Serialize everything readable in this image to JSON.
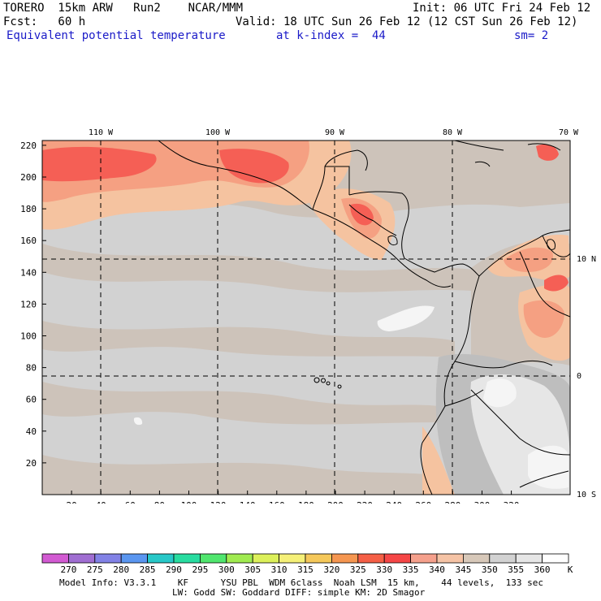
{
  "header": {
    "model": "TORERO  15km ARW   Run2    NCAR/MMM",
    "init": "Init: 06 UTC Fri 24 Feb 12",
    "fcst": "Fcst:   60 h",
    "valid": "Valid: 18 UTC Sun 26 Feb 12 (12 CST Sun 26 Feb 12)",
    "field": "Equivalent potential temperature",
    "kindex": "at k-index =  44",
    "smooth": "sm= 2"
  },
  "map": {
    "top_lon_labels": [
      "110 W",
      "100 W",
      "90 W",
      "80 W",
      "70 W"
    ],
    "right_lat_labels": [
      "10 N",
      "0",
      "10 S"
    ],
    "x_ticks": [
      "20",
      "40",
      "60",
      "80",
      "100",
      "120",
      "140",
      "160",
      "180",
      "200",
      "220",
      "240",
      "260",
      "280",
      "300",
      "320"
    ],
    "y_ticks": [
      "20",
      "40",
      "60",
      "80",
      "100",
      "120",
      "140",
      "160",
      "180",
      "200",
      "220"
    ],
    "colors": {
      "ocean_base": "#d2d2d2",
      "warm_tan": "#cdc3ba",
      "warm_peach": "#f5c3a0",
      "warm_salmon": "#f5a082",
      "warm_red": "#f55f55",
      "warm_deep": "#e83a3a",
      "cool_gray": "#bebebe",
      "cool_light": "#e6e6e6",
      "cool_white": "#f5f5f5"
    }
  },
  "legend": {
    "labels": [
      "270",
      "275",
      "280",
      "285",
      "290",
      "295",
      "300",
      "305",
      "310",
      "315",
      "320",
      "325",
      "330",
      "335",
      "340",
      "345",
      "350",
      "355",
      "360"
    ],
    "unit": "K",
    "colors": [
      "#d25ad2",
      "#a06ed2",
      "#8282e6",
      "#5a96f0",
      "#28c8c8",
      "#28dca0",
      "#50e66e",
      "#a0eb50",
      "#dcf05a",
      "#f5f078",
      "#f5c85a",
      "#f59650",
      "#f55f46",
      "#f54646",
      "#f5a08c",
      "#f5c3a5",
      "#d7c8b9",
      "#d2d2d2",
      "#e6e6e6",
      "#ffffff"
    ]
  },
  "footer": {
    "line1": "Model Info: V3.3.1    KF      YSU PBL  WDM 6class  Noah LSM  15 km,    44 levels,  133 sec",
    "line2": "LW: Godd SW: Goddard DIFF: simple KM: 2D Smagor"
  }
}
